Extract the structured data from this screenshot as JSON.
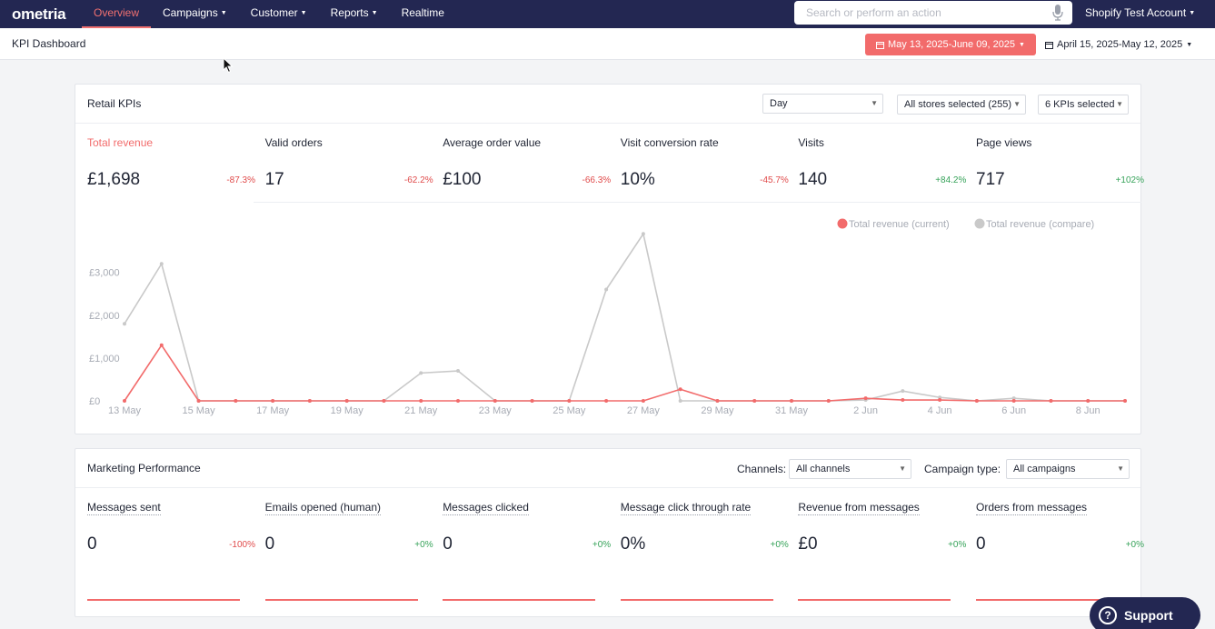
{
  "app": {
    "logo": "ometria",
    "account": "Shopify Test Account"
  },
  "nav": {
    "items": [
      {
        "label": "Overview",
        "active": true,
        "caret": false
      },
      {
        "label": "Campaigns",
        "active": false,
        "caret": true
      },
      {
        "label": "Customer",
        "active": false,
        "caret": true
      },
      {
        "label": "Reports",
        "active": false,
        "caret": true
      },
      {
        "label": "Realtime",
        "active": false,
        "caret": false
      }
    ]
  },
  "search": {
    "placeholder": "Search or perform an action",
    "value": ""
  },
  "header": {
    "title": "KPI Dashboard",
    "date_current": "May 13, 2025-June 09, 2025",
    "date_compare": "April 15, 2025-May 12, 2025"
  },
  "retail": {
    "title": "Retail KPIs",
    "granularity": "Day",
    "stores": "All stores selected (255)",
    "kpi_selector": "6 KPIs selected",
    "kpis": [
      {
        "label": "Total revenue",
        "value": "£1,698",
        "delta": "-87.3%",
        "trend": "neg"
      },
      {
        "label": "Valid orders",
        "value": "17",
        "delta": "-62.2%",
        "trend": "neg"
      },
      {
        "label": "Average order value",
        "value": "£100",
        "delta": "-66.3%",
        "trend": "neg"
      },
      {
        "label": "Visit conversion rate",
        "value": "10%",
        "delta": "-45.7%",
        "trend": "neg"
      },
      {
        "label": "Visits",
        "value": "140",
        "delta": "+84.2%",
        "trend": "pos"
      },
      {
        "label": "Page views",
        "value": "717",
        "delta": "+102%",
        "trend": "pos"
      }
    ]
  },
  "marketing": {
    "title": "Marketing Performance",
    "channels_label": "Channels:",
    "channels_value": "All channels",
    "campaign_label": "Campaign type:",
    "campaign_value": "All campaigns",
    "kpis": [
      {
        "label": "Messages sent",
        "value": "0",
        "delta": "-100%",
        "trend": "neg"
      },
      {
        "label": "Emails opened (human)",
        "value": "0",
        "delta": "+0%",
        "trend": "pos"
      },
      {
        "label": "Messages clicked",
        "value": "0",
        "delta": "+0%",
        "trend": "pos"
      },
      {
        "label": "Message click through rate",
        "value": "0%",
        "delta": "+0%",
        "trend": "pos"
      },
      {
        "label": "Revenue from messages",
        "value": "£0",
        "delta": "+0%",
        "trend": "pos"
      },
      {
        "label": "Orders from messages",
        "value": "0",
        "delta": "+0%",
        "trend": "pos"
      }
    ]
  },
  "support": {
    "label": "Support"
  },
  "colors": {
    "nav_bg": "#232752",
    "accent": "#f26b6b",
    "compare": "#c9c9c9",
    "positive": "#37a35a",
    "negative": "#e04b4b"
  },
  "chart_data": {
    "type": "line",
    "x": [
      "13 May",
      "14 May",
      "15 May",
      "16 May",
      "17 May",
      "18 May",
      "19 May",
      "20 May",
      "21 May",
      "22 May",
      "23 May",
      "24 May",
      "25 May",
      "26 May",
      "27 May",
      "28 May",
      "29 May",
      "30 May",
      "31 May",
      "1 Jun",
      "2 Jun",
      "3 Jun",
      "4 Jun",
      "5 Jun",
      "6 Jun",
      "7 Jun",
      "8 Jun",
      "9 Jun"
    ],
    "xticks": [
      "13 May",
      "15 May",
      "17 May",
      "19 May",
      "21 May",
      "23 May",
      "25 May",
      "27 May",
      "29 May",
      "31 May",
      "2 Jun",
      "4 Jun",
      "6 Jun",
      "8 Jun"
    ],
    "yticks": [
      "£0",
      "£1,000",
      "£2,000",
      "£3,000"
    ],
    "ylim": [
      0,
      4500
    ],
    "legend_position": "top-right",
    "series": [
      {
        "name": "Total revenue (current)",
        "color": "#f26b6b",
        "values": [
          0,
          1300,
          0,
          0,
          0,
          0,
          0,
          0,
          0,
          0,
          0,
          0,
          0,
          0,
          0,
          270,
          0,
          0,
          0,
          0,
          60,
          20,
          20,
          0,
          0,
          0,
          0,
          0
        ]
      },
      {
        "name": "Total revenue (compare)",
        "color": "#c9c9c9",
        "values": [
          1800,
          3200,
          0,
          0,
          0,
          0,
          0,
          0,
          650,
          700,
          0,
          0,
          0,
          2600,
          3900,
          0,
          0,
          0,
          0,
          0,
          20,
          230,
          80,
          0,
          60,
          0,
          0,
          0
        ]
      }
    ]
  }
}
